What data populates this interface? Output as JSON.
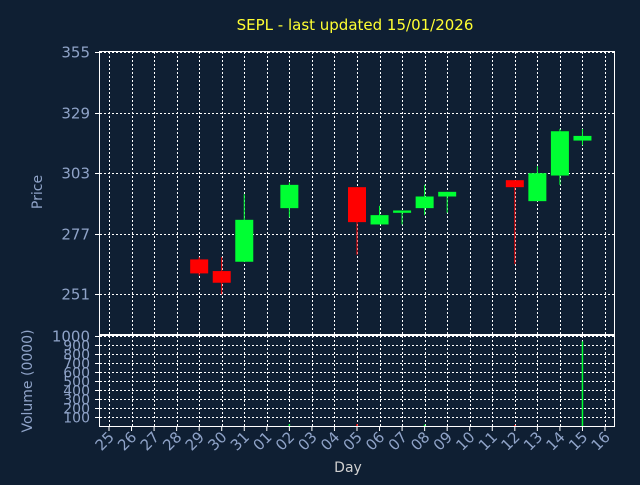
{
  "chart_data": {
    "type": "candlestick",
    "title": "SEPL - last updated 15/01/2026",
    "xlabel": "Day",
    "ylabel_price": "Price",
    "ylabel_volume": "Volume (0000)",
    "price_ylim": [
      234,
      355
    ],
    "price_ticks": [
      "355",
      "329",
      "303",
      "277",
      "251"
    ],
    "price_tick_values": [
      355,
      329,
      303,
      277,
      251
    ],
    "volume_ylim": [
      0,
      1000
    ],
    "volume_ticks": [
      "1000",
      "900",
      "800",
      "700",
      "600",
      "500",
      "400",
      "300",
      "200",
      "100"
    ],
    "volume_tick_values": [
      1000,
      900,
      800,
      700,
      600,
      500,
      400,
      300,
      200,
      100
    ],
    "day_labels": [
      "25",
      "26",
      "27",
      "28",
      "29",
      "30",
      "31",
      "01",
      "02",
      "03",
      "04",
      "05",
      "06",
      "07",
      "08",
      "09",
      "10",
      "11",
      "12",
      "13",
      "14",
      "15",
      "16"
    ],
    "grid": true,
    "colors": {
      "up": "#00ff33",
      "down": "#ff0000",
      "background": "#0f1f33",
      "grid": "#ffffff",
      "title": "#ffff33",
      "axis_text": "#8fa3c8"
    },
    "candles": [
      {
        "day": "29",
        "open": 266,
        "high": 267,
        "low": 259,
        "close": 260
      },
      {
        "day": "30",
        "open": 261,
        "high": 267,
        "low": 251,
        "close": 256
      },
      {
        "day": "31",
        "open": 265,
        "high": 294,
        "low": 265,
        "close": 283
      },
      {
        "day": "02",
        "open": 288,
        "high": 299,
        "low": 284,
        "close": 298
      },
      {
        "day": "05",
        "open": 297,
        "high": 297,
        "low": 268,
        "close": 282
      },
      {
        "day": "06",
        "open": 281,
        "high": 289,
        "low": 281,
        "close": 285
      },
      {
        "day": "07",
        "open": 286,
        "high": 287,
        "low": 281,
        "close": 287
      },
      {
        "day": "08",
        "open": 288,
        "high": 298,
        "low": 285,
        "close": 293
      },
      {
        "day": "09",
        "open": 293,
        "high": 295,
        "low": 286,
        "close": 295
      },
      {
        "day": "12",
        "open": 300,
        "high": 300,
        "low": 264,
        "close": 297
      },
      {
        "day": "13",
        "open": 291,
        "high": 306,
        "low": 291,
        "close": 303
      },
      {
        "day": "14",
        "open": 302,
        "high": 322,
        "low": 298,
        "close": 321
      },
      {
        "day": "15",
        "open": 317,
        "high": 322,
        "low": 315,
        "close": 319
      }
    ],
    "volumes": [
      {
        "day": "02",
        "value": 20,
        "direction": "up"
      },
      {
        "day": "05",
        "value": 20,
        "direction": "down"
      },
      {
        "day": "08",
        "value": 15,
        "direction": "up"
      },
      {
        "day": "12",
        "value": 10,
        "direction": "down"
      },
      {
        "day": "15",
        "value": 940,
        "direction": "up"
      }
    ]
  }
}
